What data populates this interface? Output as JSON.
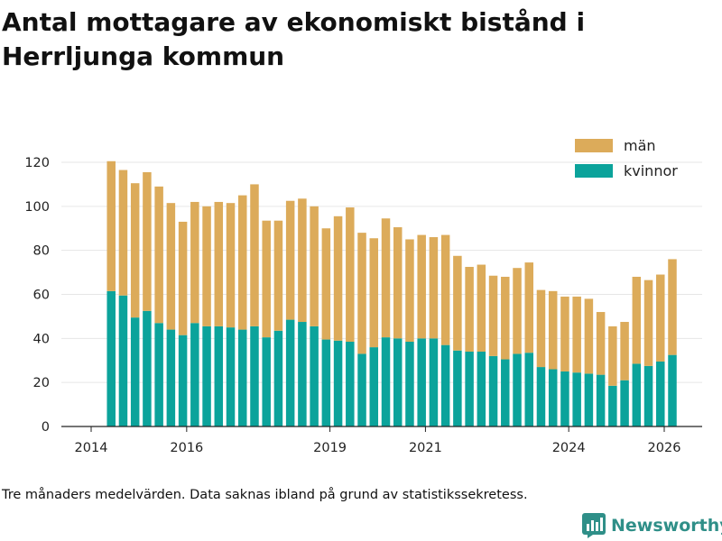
{
  "chart_data": {
    "type": "bar",
    "stacked": true,
    "title": "Antal mottagare av ekonomiskt bistånd i Herrljunga kommun",
    "xlabel": "",
    "ylabel": "",
    "ylim": [
      0,
      125
    ],
    "yticks": [
      0,
      20,
      40,
      60,
      80,
      100,
      120
    ],
    "xlim": [
      2013.9,
      2026.67
    ],
    "xticks": [
      2014,
      2016,
      2019,
      2021,
      2024,
      2026
    ],
    "legend_position": "top-right",
    "x": [
      2014.42,
      2014.67,
      2014.92,
      2015.17,
      2015.42,
      2015.67,
      2015.92,
      2016.17,
      2016.42,
      2016.67,
      2016.92,
      2017.17,
      2017.42,
      2017.67,
      2017.92,
      2018.17,
      2018.42,
      2018.67,
      2018.92,
      2019.17,
      2019.42,
      2019.67,
      2019.92,
      2020.17,
      2020.42,
      2020.67,
      2020.92,
      2021.17,
      2021.42,
      2021.67,
      2021.92,
      2022.17,
      2022.42,
      2022.67,
      2022.92,
      2023.17,
      2023.42,
      2023.67,
      2023.92,
      2024.17,
      2024.42,
      2024.67,
      2024.92,
      2025.17,
      2025.42,
      2025.67,
      2025.92,
      2026.17
    ],
    "series": [
      {
        "name": "kvinnor",
        "color": "#0ba39b",
        "values": [
          61.5,
          59.5,
          49.5,
          52.5,
          47,
          44,
          41.5,
          47,
          45.5,
          45.5,
          45,
          44,
          45.5,
          40.5,
          43.5,
          48.5,
          47.5,
          45.5,
          39.5,
          39,
          38.5,
          33,
          36,
          40.5,
          40,
          38.5,
          40,
          40,
          37,
          34.5,
          34,
          34,
          32,
          30.5,
          33,
          33.5,
          27,
          26,
          25,
          24.5,
          24,
          23.5,
          18.5,
          21,
          28.5,
          27.5,
          29.5,
          32.5
        ]
      },
      {
        "name": "män",
        "color": "#dcab5a",
        "values": [
          59,
          57,
          61,
          63,
          62,
          57.5,
          51.5,
          55,
          54.5,
          56.5,
          56.5,
          61,
          64.5,
          53,
          50,
          54,
          56,
          54.5,
          50.5,
          56.5,
          61,
          55,
          49.5,
          54,
          50.5,
          46.5,
          47,
          46,
          50,
          43,
          38.5,
          39.5,
          36.5,
          37.5,
          39,
          41,
          35,
          35.5,
          34,
          34.5,
          34,
          28.5,
          27,
          26.5,
          39.5,
          39,
          39.5,
          43.5
        ]
      }
    ]
  },
  "title": "Antal mottagare av ekonomiskt bistånd i Herrljunga kommun",
  "note": "Tre månaders medelvärden. Data saknas ibland på grund av statistikssekretess.",
  "brand": {
    "name": "Newsworthy",
    "icon": "bar-chart-logo-icon",
    "color": "#2f8f88"
  }
}
